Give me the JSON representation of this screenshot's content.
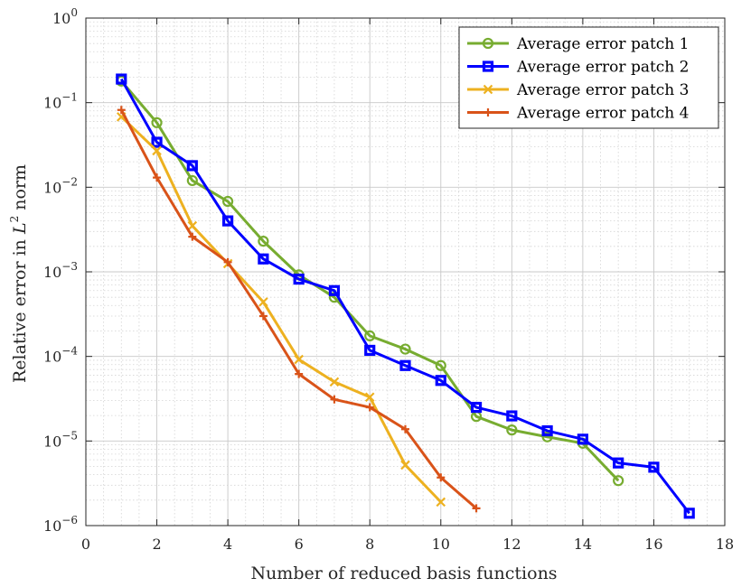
{
  "chart_data": {
    "type": "line",
    "yscale": "log",
    "xlabel": "Number of reduced basis functions",
    "ylabel_prefix": "Relative error in ",
    "ylabel_var": "L",
    "ylabel_sup": "2",
    "ylabel_suffix": " norm",
    "xlim": [
      0,
      18
    ],
    "ylim": [
      1e-06,
      1
    ],
    "xticks": [
      0,
      2,
      4,
      6,
      8,
      10,
      12,
      14,
      16,
      18
    ],
    "yticks": [
      {
        "value": 1,
        "base": "10",
        "exp": "0"
      },
      {
        "value": 0.1,
        "base": "10",
        "exp": "−1"
      },
      {
        "value": 0.01,
        "base": "10",
        "exp": "−2"
      },
      {
        "value": 0.001,
        "base": "10",
        "exp": "−3"
      },
      {
        "value": 0.0001,
        "base": "10",
        "exp": "−4"
      },
      {
        "value": 1e-05,
        "base": "10",
        "exp": "−5"
      },
      {
        "value": 1e-06,
        "base": "10",
        "exp": "−6"
      }
    ],
    "grid": true,
    "minor_grid": true,
    "legend_position": "top-right",
    "series": [
      {
        "name": "Average error patch 1",
        "color": "#77ac30",
        "marker": "circle",
        "x": [
          1,
          2,
          3,
          4,
          5,
          6,
          7,
          8,
          9,
          10,
          11,
          12,
          13,
          14,
          15
        ],
        "y": [
          0.18,
          0.058,
          0.012,
          0.0068,
          0.0023,
          0.00092,
          0.0005,
          0.000175,
          0.000122,
          7.8e-05,
          1.95e-05,
          1.35e-05,
          1.12e-05,
          9.4e-06,
          3.4e-06
        ]
      },
      {
        "name": "Average error patch 2",
        "color": "#0000ff",
        "marker": "square",
        "x": [
          1,
          2,
          3,
          4,
          5,
          6,
          7,
          8,
          9,
          10,
          11,
          12,
          13,
          14,
          15,
          16,
          17
        ],
        "y": [
          0.19,
          0.034,
          0.018,
          0.004,
          0.00142,
          0.00082,
          0.0006,
          0.000118,
          7.8e-05,
          5.2e-05,
          2.5e-05,
          1.98e-05,
          1.32e-05,
          1.05e-05,
          5.5e-06,
          4.9e-06,
          1.4e-06
        ]
      },
      {
        "name": "Average error patch 3",
        "color": "#edb120",
        "marker": "x",
        "x": [
          1,
          2,
          3,
          4,
          5,
          6,
          7,
          8,
          9,
          10
        ],
        "y": [
          0.068,
          0.027,
          0.0035,
          0.00125,
          0.00044,
          9.2e-05,
          5e-05,
          3.3e-05,
          5.2e-06,
          1.9e-06
        ]
      },
      {
        "name": "Average error patch 4",
        "color": "#d95319",
        "marker": "plus",
        "x": [
          1,
          2,
          3,
          4,
          5,
          6,
          7,
          8,
          9,
          10,
          11
        ],
        "y": [
          0.082,
          0.013,
          0.0026,
          0.0013,
          0.0003,
          6.2e-05,
          3.1e-05,
          2.5e-05,
          1.38e-05,
          3.7e-06,
          1.6e-06
        ]
      }
    ]
  }
}
